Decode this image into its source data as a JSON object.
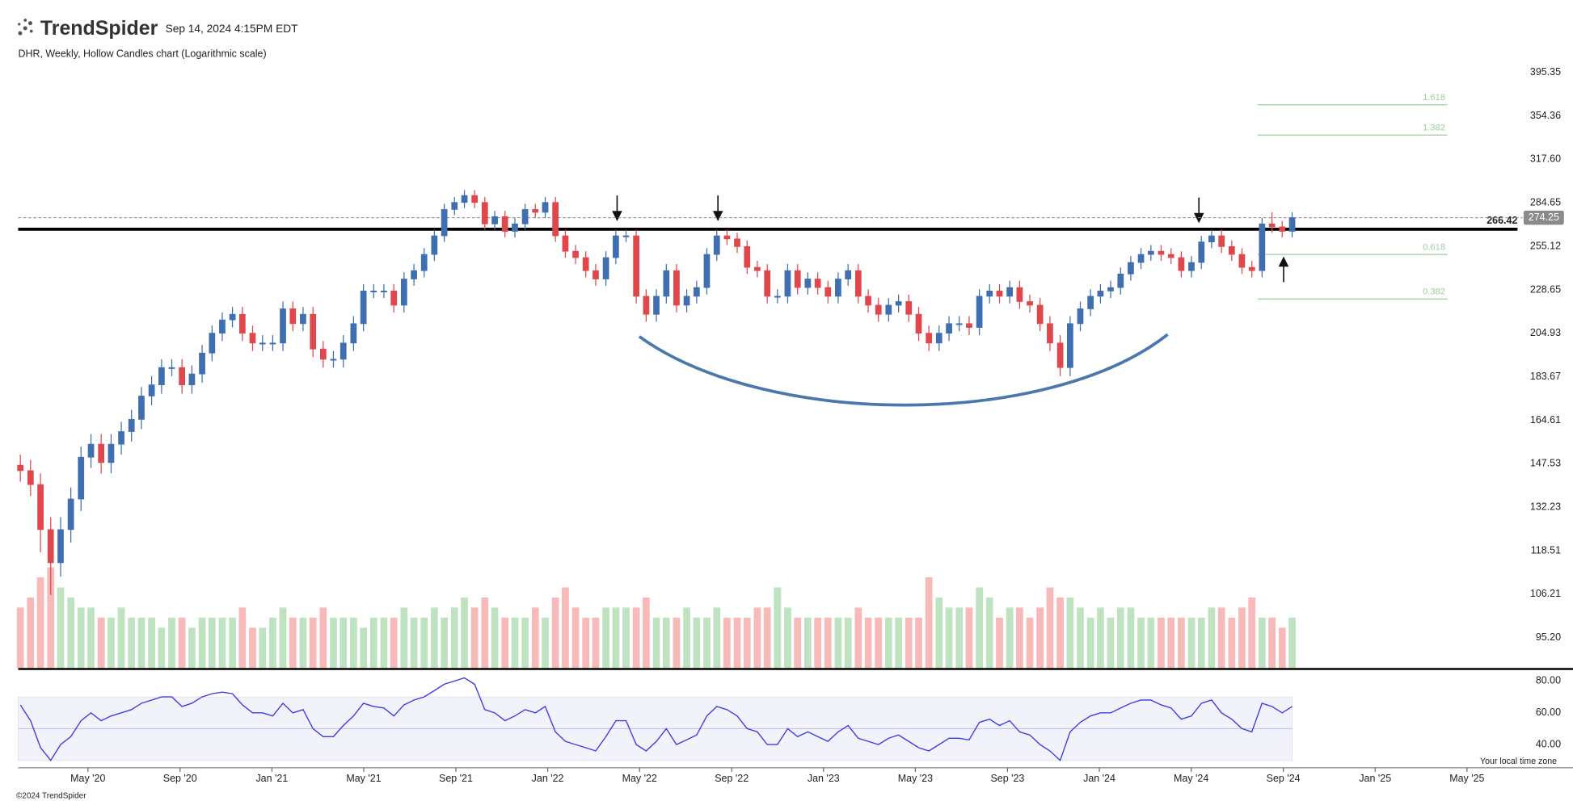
{
  "header": {
    "brand": "TrendSpider",
    "timestamp": "Sep 14, 2024 4:15PM EDT"
  },
  "footer": {
    "copyright": "©2024 TrendSpider",
    "timezone_note": "Your local time zone"
  },
  "chart_data": {
    "type": "candlestick",
    "title": "DHR, Weekly, Hollow Candles chart (Logarithmic scale)",
    "log_scale": true,
    "x": [
      2020.088,
      2020.125,
      2020.161,
      2020.198,
      2020.234,
      2020.271,
      2020.308,
      2020.344,
      2020.381,
      2020.417,
      2020.454,
      2020.491,
      2020.527,
      2020.564,
      2020.6,
      2020.637,
      2020.674,
      2020.71,
      2020.747,
      2020.783,
      2020.82,
      2020.857,
      2020.893,
      2020.93,
      2020.966,
      2021.003,
      2021.04,
      2021.076,
      2021.113,
      2021.149,
      2021.186,
      2021.223,
      2021.259,
      2021.296,
      2021.332,
      2021.369,
      2021.406,
      2021.442,
      2021.479,
      2021.515,
      2021.552,
      2021.589,
      2021.625,
      2021.662,
      2021.698,
      2021.735,
      2021.772,
      2021.808,
      2021.845,
      2021.881,
      2021.918,
      2021.955,
      2021.991,
      2022.028,
      2022.064,
      2022.101,
      2022.138,
      2022.174,
      2022.211,
      2022.247,
      2022.284,
      2022.321,
      2022.357,
      2022.394,
      2022.43,
      2022.467,
      2022.504,
      2022.54,
      2022.577,
      2022.613,
      2022.65,
      2022.687,
      2022.723,
      2022.76,
      2022.796,
      2022.833,
      2022.87,
      2022.906,
      2022.943,
      2022.979,
      2023.016,
      2023.053,
      2023.089,
      2023.126,
      2023.162,
      2023.199,
      2023.236,
      2023.272,
      2023.309,
      2023.345,
      2023.382,
      2023.419,
      2023.455,
      2023.492,
      2023.528,
      2023.565,
      2023.602,
      2023.638,
      2023.675,
      2023.711,
      2023.748,
      2023.785,
      2023.821,
      2023.858,
      2023.894,
      2023.931,
      2023.968,
      2024.004,
      2024.041,
      2024.077,
      2024.114,
      2024.151,
      2024.187,
      2024.224,
      2024.26,
      2024.297,
      2024.334,
      2024.37,
      2024.407,
      2024.443,
      2024.48,
      2024.517,
      2024.553,
      2024.59,
      2024.626,
      2024.663,
      2024.699
    ],
    "open": [
      147,
      145,
      140,
      125,
      115,
      125,
      135,
      150,
      155,
      148,
      155,
      160,
      165,
      175,
      180,
      188,
      188,
      180,
      185,
      195,
      205,
      212,
      215,
      205,
      200,
      200,
      200,
      218,
      210,
      215,
      197,
      192,
      192,
      200,
      210,
      228,
      228,
      228,
      220,
      235,
      240,
      250,
      262,
      280,
      285,
      290,
      285,
      270,
      275,
      265,
      270,
      280,
      278,
      285,
      262,
      252,
      248,
      240,
      235,
      248,
      262,
      262,
      225,
      215,
      225,
      240,
      220,
      225,
      230,
      250,
      262,
      260,
      255,
      242,
      240,
      225,
      225,
      240,
      230,
      235,
      230,
      225,
      235,
      240,
      225,
      220,
      215,
      220,
      222,
      215,
      205,
      200,
      205,
      210,
      210,
      208,
      225,
      228,
      225,
      230,
      222,
      220,
      210,
      200,
      188,
      210,
      218,
      225,
      228,
      230,
      238,
      245,
      250,
      252,
      250,
      248,
      240,
      245,
      258,
      262,
      255,
      250,
      242,
      240,
      270,
      268,
      265
    ],
    "high": [
      151,
      149,
      144,
      129,
      129,
      139,
      154,
      159,
      159,
      159,
      164,
      169,
      179,
      184,
      192,
      192,
      192,
      189,
      199,
      209,
      216,
      219,
      219,
      209,
      204,
      204,
      222,
      222,
      219,
      219,
      201,
      196,
      204,
      214,
      232,
      232,
      232,
      232,
      239,
      244,
      254,
      266,
      284,
      289,
      294,
      294,
      289,
      279,
      279,
      274,
      284,
      284,
      289,
      289,
      266,
      256,
      252,
      244,
      252,
      266,
      266,
      266,
      229,
      229,
      244,
      244,
      229,
      234,
      254,
      266,
      266,
      264,
      259,
      246,
      244,
      229,
      244,
      244,
      239,
      239,
      234,
      239,
      244,
      244,
      229,
      224,
      224,
      226,
      226,
      219,
      209,
      209,
      214,
      214,
      214,
      229,
      232,
      232,
      234,
      234,
      226,
      224,
      214,
      204,
      214,
      222,
      229,
      232,
      234,
      242,
      249,
      254,
      256,
      256,
      254,
      252,
      249,
      262,
      266,
      266,
      259,
      254,
      246,
      274,
      278,
      272,
      278
    ],
    "low": [
      141,
      136,
      118,
      106,
      111,
      121,
      131,
      146,
      144,
      144,
      151,
      156,
      161,
      171,
      176,
      184,
      176,
      176,
      181,
      191,
      201,
      208,
      201,
      196,
      196,
      196,
      196,
      206,
      206,
      193,
      188,
      188,
      188,
      196,
      206,
      224,
      224,
      216,
      216,
      231,
      236,
      246,
      258,
      276,
      281,
      281,
      266,
      266,
      261,
      261,
      266,
      274,
      274,
      258,
      248,
      244,
      236,
      231,
      231,
      244,
      258,
      221,
      211,
      211,
      221,
      216,
      216,
      221,
      226,
      246,
      256,
      251,
      238,
      236,
      221,
      221,
      221,
      226,
      226,
      226,
      221,
      221,
      231,
      221,
      216,
      211,
      211,
      216,
      211,
      201,
      196,
      196,
      201,
      206,
      204,
      204,
      221,
      221,
      221,
      218,
      216,
      206,
      196,
      184,
      184,
      206,
      214,
      221,
      224,
      226,
      234,
      241,
      246,
      246,
      244,
      236,
      236,
      241,
      254,
      251,
      246,
      238,
      236,
      236,
      264,
      261,
      261
    ],
    "close": [
      145,
      140,
      125,
      115,
      125,
      135,
      150,
      155,
      148,
      155,
      160,
      165,
      175,
      180,
      188,
      188,
      180,
      185,
      195,
      205,
      212,
      215,
      205,
      200,
      200,
      200,
      218,
      210,
      215,
      197,
      192,
      192,
      200,
      210,
      228,
      228,
      228,
      220,
      235,
      240,
      250,
      262,
      280,
      285,
      290,
      285,
      270,
      275,
      265,
      270,
      280,
      278,
      285,
      262,
      252,
      248,
      240,
      235,
      248,
      262,
      262,
      225,
      215,
      225,
      240,
      220,
      225,
      230,
      250,
      262,
      260,
      255,
      242,
      240,
      225,
      225,
      240,
      230,
      235,
      230,
      225,
      235,
      240,
      225,
      220,
      215,
      220,
      222,
      215,
      205,
      200,
      205,
      210,
      210,
      208,
      225,
      228,
      225,
      230,
      222,
      220,
      210,
      200,
      188,
      210,
      218,
      225,
      228,
      230,
      238,
      245,
      250,
      252,
      250,
      248,
      240,
      245,
      258,
      262,
      255,
      250,
      242,
      240,
      270,
      268,
      265,
      274.25
    ],
    "volume": [
      6,
      7,
      9,
      10,
      8,
      7,
      6,
      6,
      5,
      5,
      6,
      5,
      5,
      5,
      4,
      5,
      5,
      4,
      5,
      5,
      5,
      5,
      6,
      4,
      4,
      5,
      6,
      5,
      5,
      5,
      6,
      5,
      5,
      5,
      4,
      5,
      5,
      5,
      6,
      5,
      5,
      6,
      5,
      6,
      7,
      6,
      7,
      6,
      5,
      5,
      5,
      6,
      5,
      7,
      8,
      6,
      5,
      5,
      6,
      6,
      6,
      6,
      7,
      5,
      5,
      5,
      6,
      5,
      5,
      6,
      5,
      5,
      5,
      6,
      6,
      8,
      6,
      5,
      5,
      5,
      5,
      5,
      5,
      6,
      5,
      5,
      5,
      5,
      5,
      5,
      9,
      7,
      6,
      6,
      6,
      8,
      7,
      5,
      6,
      6,
      5,
      6,
      8,
      7,
      7,
      6,
      5,
      6,
      5,
      6,
      6,
      5,
      5,
      5,
      5,
      5,
      5,
      5,
      6,
      6,
      5,
      6,
      7,
      5,
      5,
      4,
      5
    ],
    "colors": {
      "up": "#3f6fb0",
      "down": "#e0474c",
      "volume_up": "#bfe3c1",
      "volume_down": "#f8b9b9"
    },
    "xlim": [
      2020.08,
      2025.37
    ],
    "xticks": [
      {
        "value": 2020.333,
        "label": "May '20"
      },
      {
        "value": 2020.667,
        "label": "Sep '20"
      },
      {
        "value": 2021.0,
        "label": "Jan '21"
      },
      {
        "value": 2021.333,
        "label": "May '21"
      },
      {
        "value": 2021.667,
        "label": "Sep '21"
      },
      {
        "value": 2022.0,
        "label": "Jan '22"
      },
      {
        "value": 2022.333,
        "label": "May '22"
      },
      {
        "value": 2022.667,
        "label": "Sep '22"
      },
      {
        "value": 2023.0,
        "label": "Jan '23"
      },
      {
        "value": 2023.333,
        "label": "May '23"
      },
      {
        "value": 2023.667,
        "label": "Sep '23"
      },
      {
        "value": 2024.0,
        "label": "Jan '24"
      },
      {
        "value": 2024.333,
        "label": "May '24"
      },
      {
        "value": 2024.667,
        "label": "Sep '24"
      },
      {
        "value": 2025.0,
        "label": "Jan '25"
      },
      {
        "value": 2025.333,
        "label": "May '25"
      }
    ],
    "ylim": [
      88.2,
      402.4
    ],
    "yticks": [
      395.35,
      354.36,
      {
        "value": 317.6,
        "label": "317.60"
      },
      284.65,
      255.12,
      228.65,
      204.93,
      183.67,
      164.61,
      147.53,
      132.23,
      118.51,
      106.21,
      {
        "value": 95.2,
        "label": "95.20"
      }
    ],
    "levels": [
      {
        "value": 266.42,
        "color": "#000000"
      },
      {
        "value": 274.25,
        "color": "#8a8a8a"
      }
    ],
    "fib_levels": [
      {
        "value": 364.5,
        "label": "1.618"
      },
      {
        "value": 337.7,
        "label": "1.382"
      },
      {
        "value": 250,
        "label": "0.618"
      },
      {
        "value": 223.5,
        "label": "0.382"
      }
    ],
    "fib_color": "#9ccf9c",
    "fib_x": [
      2024.574,
      2025.262
    ],
    "rsi": {
      "values": [
        65,
        55,
        38,
        30,
        40,
        45,
        55,
        60,
        55,
        58,
        60,
        62,
        66,
        68,
        70,
        70,
        64,
        66,
        70,
        72,
        73,
        72,
        65,
        60,
        60,
        58,
        66,
        60,
        62,
        50,
        45,
        45,
        52,
        58,
        66,
        64,
        63,
        58,
        65,
        68,
        70,
        74,
        78,
        80,
        82,
        78,
        62,
        60,
        55,
        58,
        62,
        60,
        64,
        48,
        42,
        40,
        38,
        36,
        45,
        55,
        55,
        40,
        36,
        42,
        50,
        40,
        43,
        46,
        58,
        64,
        62,
        58,
        50,
        48,
        40,
        40,
        50,
        45,
        48,
        45,
        42,
        48,
        52,
        44,
        42,
        40,
        44,
        46,
        42,
        38,
        36,
        40,
        44,
        44,
        43,
        54,
        56,
        52,
        55,
        48,
        46,
        40,
        36,
        30,
        48,
        54,
        58,
        60,
        60,
        63,
        66,
        68,
        68,
        65,
        63,
        56,
        58,
        66,
        68,
        60,
        56,
        50,
        48,
        66,
        64,
        60,
        64
      ],
      "color": "#3b3be3",
      "ylim": [
        25.4,
        86.3
      ],
      "band": [
        30,
        70
      ],
      "midline": 50,
      "yticks": [
        {
          "value": 80,
          "label": "80.00"
        },
        {
          "value": 60,
          "label": "60.00"
        },
        {
          "value": 40,
          "label": "40.00"
        }
      ]
    }
  }
}
